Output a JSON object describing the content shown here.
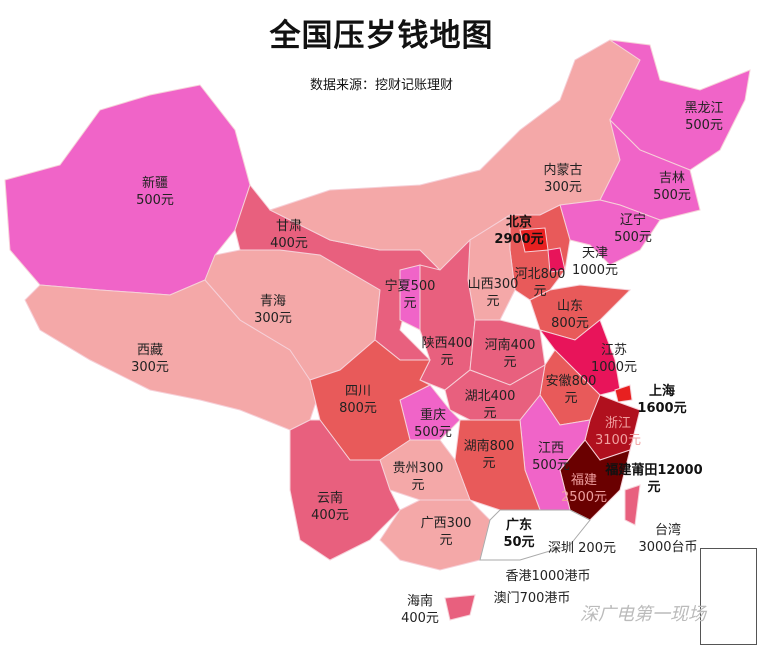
{
  "title": "全国压岁钱地图",
  "subtitle": "数据来源：挖财记账理财",
  "watermark": "深广电第一现场",
  "colors": {
    "magenta": "#f064c8",
    "light": "#f4a8a8",
    "medium": "#e8607e",
    "red": "#e85a5a",
    "jiangsu": "#e8145a",
    "beijing": "#e82020",
    "zhejiang": "#b0101e",
    "fujian": "#6a0000",
    "guangdong": "#ffffff"
  },
  "provinces": [
    {
      "id": "xinjiang",
      "name": "新疆",
      "amount": "500元",
      "fill": "#f064c8"
    },
    {
      "id": "xizang",
      "name": "西藏",
      "amount": "300元",
      "fill": "#f4a8a8"
    },
    {
      "id": "qinghai",
      "name": "青海",
      "amount": "300元",
      "fill": "#f4a8a8"
    },
    {
      "id": "gansu",
      "name": "甘肃",
      "amount": "400元",
      "fill": "#e8607e"
    },
    {
      "id": "neimenggu",
      "name": "内蒙古",
      "amount": "300元",
      "fill": "#f4a8a8"
    },
    {
      "id": "heilongjiang",
      "name": "黑龙江",
      "amount": "500元",
      "fill": "#f064c8"
    },
    {
      "id": "jilin",
      "name": "吉林",
      "amount": "500元",
      "fill": "#f064c8"
    },
    {
      "id": "liaoning",
      "name": "辽宁",
      "amount": "500元",
      "fill": "#f064c8"
    },
    {
      "id": "hebei",
      "name": "河北800",
      "amount": "元",
      "fill": "#e85a5a"
    },
    {
      "id": "beijing",
      "name": "北京",
      "amount": "2900元",
      "fill": "#e82020",
      "bold": true
    },
    {
      "id": "tianjin",
      "name": "天津",
      "amount": "1000元",
      "fill": "#e8145a"
    },
    {
      "id": "shanxi",
      "name": "山西300",
      "amount": "元",
      "fill": "#f4a8a8"
    },
    {
      "id": "shandong",
      "name": "山东",
      "amount": "800元",
      "fill": "#e85a5a"
    },
    {
      "id": "ningxia",
      "name": "宁夏500",
      "amount": "元",
      "fill": "#f064c8"
    },
    {
      "id": "shaanxi",
      "name": "陕西400",
      "amount": "元",
      "fill": "#e8607e"
    },
    {
      "id": "henan",
      "name": "河南400",
      "amount": "元",
      "fill": "#e8607e"
    },
    {
      "id": "jiangsu",
      "name": "江苏",
      "amount": "1000元",
      "fill": "#e8145a"
    },
    {
      "id": "shanghai",
      "name": "上海",
      "amount": "1600元",
      "fill": "#e82020",
      "bold": true
    },
    {
      "id": "anhui",
      "name": "安徽800",
      "amount": "元",
      "fill": "#e85a5a"
    },
    {
      "id": "zhejiang",
      "name": "浙江",
      "amount": "3100元",
      "fill": "#b0101e"
    },
    {
      "id": "fujian",
      "name": "福建",
      "amount": "2500元",
      "fill": "#6a0000"
    },
    {
      "id": "putian",
      "name": "福建莆田12000",
      "amount": "元",
      "fill": "",
      "bold": true
    },
    {
      "id": "jiangxi",
      "name": "江西",
      "amount": "500元",
      "fill": "#f064c8"
    },
    {
      "id": "hubei",
      "name": "湖北400",
      "amount": "元",
      "fill": "#e8607e"
    },
    {
      "id": "hunan",
      "name": "湖南800",
      "amount": "元",
      "fill": "#e85a5a"
    },
    {
      "id": "chongqing",
      "name": "重庆",
      "amount": "500元",
      "fill": "#f064c8"
    },
    {
      "id": "sichuan",
      "name": "四川",
      "amount": "800元",
      "fill": "#e85a5a"
    },
    {
      "id": "guizhou",
      "name": "贵州300",
      "amount": "元",
      "fill": "#f4a8a8"
    },
    {
      "id": "yunnan",
      "name": "云南",
      "amount": "400元",
      "fill": "#e8607e"
    },
    {
      "id": "guangxi",
      "name": "广西300",
      "amount": "元",
      "fill": "#f4a8a8"
    },
    {
      "id": "guangdong",
      "name": "广东",
      "amount": "50元",
      "fill": "#ffffff",
      "bold": true
    },
    {
      "id": "shenzhen",
      "name": "深圳 200元",
      "amount": "",
      "fill": ""
    },
    {
      "id": "hongkong",
      "name": "香港1000港币",
      "amount": "",
      "fill": ""
    },
    {
      "id": "macau",
      "name": "澳门700港币",
      "amount": "",
      "fill": ""
    },
    {
      "id": "hainan",
      "name": "海南",
      "amount": "400元",
      "fill": "#e8607e"
    },
    {
      "id": "taiwan",
      "name": "台湾",
      "amount": "3000台币",
      "fill": "#e8607e"
    }
  ]
}
